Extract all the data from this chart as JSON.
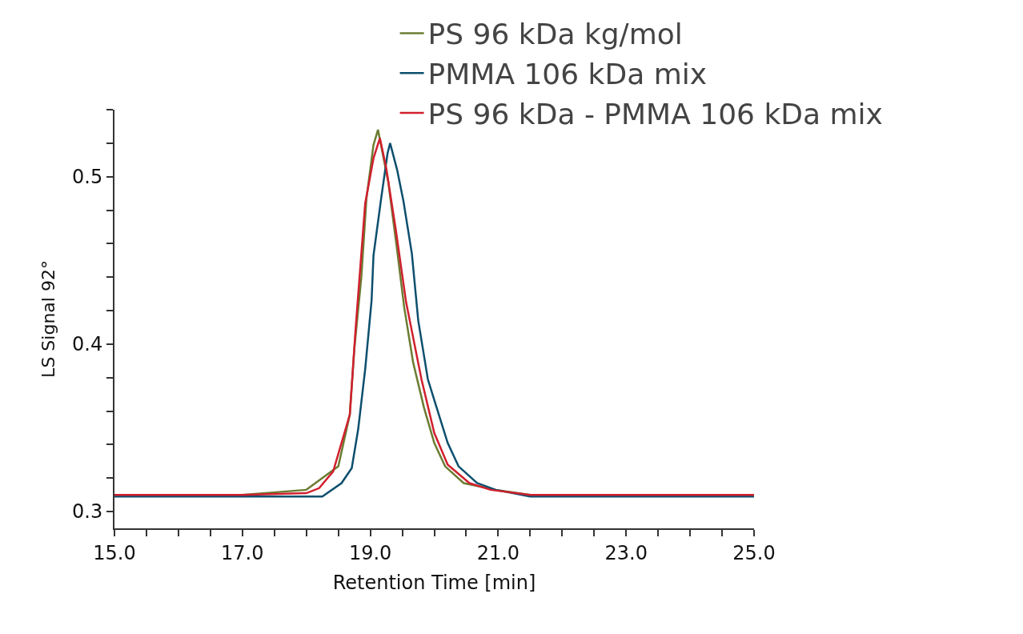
{
  "chart_data": {
    "type": "line",
    "xlabel": "Retention Time [min]",
    "ylabel": "LS Signal 92°",
    "xlim": [
      15,
      25
    ],
    "ylim": [
      0.29,
      0.54
    ],
    "xticks": [
      {
        "value": 15,
        "label": "15.0"
      },
      {
        "value": 15.5,
        "label": null
      },
      {
        "value": 16,
        "label": null
      },
      {
        "value": 16.5,
        "label": null
      },
      {
        "value": 17,
        "label": "17.0"
      },
      {
        "value": 17.5,
        "label": null
      },
      {
        "value": 18,
        "label": null
      },
      {
        "value": 18.5,
        "label": null
      },
      {
        "value": 19,
        "label": "19.0"
      },
      {
        "value": 19.5,
        "label": null
      },
      {
        "value": 20,
        "label": null
      },
      {
        "value": 20.5,
        "label": null
      },
      {
        "value": 21,
        "label": "21.0"
      },
      {
        "value": 21.5,
        "label": null
      },
      {
        "value": 22,
        "label": null
      },
      {
        "value": 22.5,
        "label": null
      },
      {
        "value": 23,
        "label": "23.0"
      },
      {
        "value": 23.5,
        "label": null
      },
      {
        "value": 24,
        "label": null
      },
      {
        "value": 24.5,
        "label": null
      },
      {
        "value": 25,
        "label": "25.0"
      }
    ],
    "yticks": [
      {
        "value": 0.3,
        "label": "0.3"
      },
      {
        "value": 0.32,
        "label": null
      },
      {
        "value": 0.34,
        "label": null
      },
      {
        "value": 0.36,
        "label": null
      },
      {
        "value": 0.38,
        "label": null
      },
      {
        "value": 0.4,
        "label": "0.4"
      },
      {
        "value": 0.42,
        "label": null
      },
      {
        "value": 0.44,
        "label": null
      },
      {
        "value": 0.46,
        "label": null
      },
      {
        "value": 0.48,
        "label": null
      },
      {
        "value": 0.5,
        "label": "0.5"
      },
      {
        "value": 0.52,
        "label": null
      },
      {
        "value": 0.54,
        "label": null
      }
    ],
    "legend": "top right",
    "marker": "none",
    "line_style": "solid",
    "series": [
      {
        "name": "PS 96 kDa kg/mol",
        "color": "#6b7c32",
        "x": [
          15,
          17,
          18,
          18.5,
          18.68,
          18.75,
          18.86,
          18.94,
          19.05,
          19.12,
          19.28,
          19.42,
          19.53,
          19.67,
          19.84,
          20.0,
          20.17,
          20.46,
          20.96,
          21.5,
          23,
          25
        ],
        "values": [
          0.31,
          0.31,
          0.313,
          0.327,
          0.358,
          0.397,
          0.44,
          0.487,
          0.519,
          0.528,
          0.497,
          0.456,
          0.422,
          0.389,
          0.362,
          0.341,
          0.327,
          0.317,
          0.313,
          0.31,
          0.31,
          0.31
        ]
      },
      {
        "name": "PMMA 106 kDa mix",
        "color": "#0d4f6e",
        "x": [
          15,
          17,
          18,
          18.25,
          18.55,
          18.71,
          18.81,
          18.92,
          19.02,
          19.05,
          19.17,
          19.27,
          19.31,
          19.42,
          19.52,
          19.65,
          19.75,
          19.9,
          20.03,
          20.21,
          20.38,
          20.67,
          20.96,
          21.5,
          23,
          25
        ],
        "values": [
          0.309,
          0.309,
          0.309,
          0.309,
          0.317,
          0.326,
          0.349,
          0.385,
          0.426,
          0.453,
          0.487,
          0.514,
          0.52,
          0.504,
          0.485,
          0.454,
          0.414,
          0.379,
          0.363,
          0.341,
          0.327,
          0.317,
          0.313,
          0.309,
          0.309,
          0.309
        ]
      },
      {
        "name": "PS 96 kDa - PMMA 106 kDa mix",
        "color": "#d0202e",
        "x": [
          15,
          17,
          18,
          18.2,
          18.42,
          18.68,
          18.77,
          18.92,
          19.05,
          19.15,
          19.25,
          19.4,
          19.56,
          19.8,
          20.0,
          20.21,
          20.55,
          20.88,
          21.5,
          23,
          25
        ],
        "values": [
          0.31,
          0.31,
          0.311,
          0.314,
          0.324,
          0.358,
          0.409,
          0.484,
          0.511,
          0.523,
          0.505,
          0.468,
          0.425,
          0.379,
          0.347,
          0.328,
          0.317,
          0.313,
          0.31,
          0.31,
          0.31
        ]
      }
    ]
  }
}
